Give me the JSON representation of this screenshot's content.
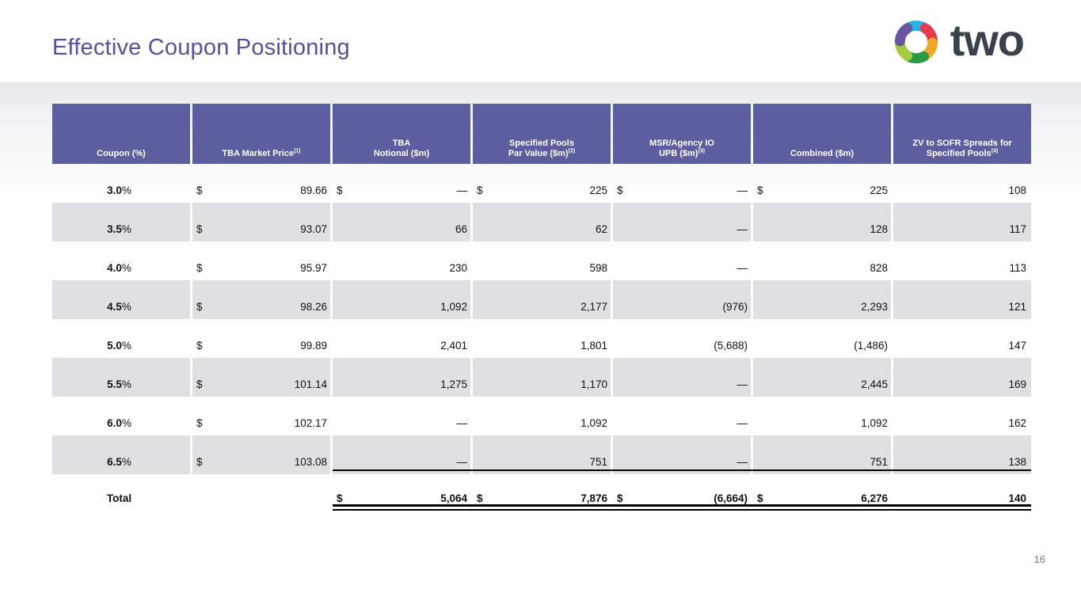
{
  "slide": {
    "title": "Effective Coupon Positioning",
    "page_number": "16"
  },
  "logo": {
    "text": "two",
    "icon_name": "two-hexagon-mark",
    "segment_colors": {
      "top_cyan": "#2ab1e2",
      "upper_right_red": "#e63b4f",
      "lower_right_yellow": "#f0a82a",
      "bottom_green": "#2a9a48",
      "lower_left_lime": "#a5c93f",
      "upper_left_purple": "#6b549f"
    }
  },
  "colors": {
    "title_purple": "#584f9e",
    "header_cell_purple": "#5c5e9f",
    "shaded_row_gray": "#e0e0e3",
    "logo_text_dark": "#39414d"
  },
  "table": {
    "columns": [
      {
        "line1": "",
        "line2": "Coupon (%)",
        "sup": ""
      },
      {
        "line1": "",
        "line2": "TBA Market Price",
        "sup": "(1)"
      },
      {
        "line1": "TBA",
        "line2": "Notional ($m)",
        "sup": ""
      },
      {
        "line1": "Specified Pools",
        "line2": "Par Value ($m)",
        "sup": "(2)"
      },
      {
        "line1": "MSR/Agency IO",
        "line2": "UPB ($m)",
        "sup": "(3)"
      },
      {
        "line1": "",
        "line2": "Combined ($m)",
        "sup": ""
      },
      {
        "line1": "ZV to SOFR Spreads for",
        "line2": "Specified Pools",
        "sup": "(4)"
      }
    ],
    "rows": [
      {
        "coupon": "3.0%",
        "shaded": false,
        "cells": [
          [
            "$",
            "89.66"
          ],
          [
            "$",
            "—"
          ],
          [
            "$",
            "225"
          ],
          [
            "$",
            "—"
          ],
          [
            "$",
            "225"
          ],
          [
            "",
            "108"
          ]
        ]
      },
      {
        "coupon": "3.5%",
        "shaded": true,
        "cells": [
          [
            "$",
            "93.07"
          ],
          [
            "",
            "66"
          ],
          [
            "",
            "62"
          ],
          [
            "",
            "—"
          ],
          [
            "",
            "128"
          ],
          [
            "",
            "117"
          ]
        ]
      },
      {
        "coupon": "4.0%",
        "shaded": false,
        "cells": [
          [
            "$",
            "95.97"
          ],
          [
            "",
            "230"
          ],
          [
            "",
            "598"
          ],
          [
            "",
            "—"
          ],
          [
            "",
            "828"
          ],
          [
            "",
            "113"
          ]
        ]
      },
      {
        "coupon": "4.5%",
        "shaded": true,
        "cells": [
          [
            "$",
            "98.26"
          ],
          [
            "",
            "1,092"
          ],
          [
            "",
            "2,177"
          ],
          [
            "",
            "(976)"
          ],
          [
            "",
            "2,293"
          ],
          [
            "",
            "121"
          ]
        ]
      },
      {
        "coupon": "5.0%",
        "shaded": false,
        "cells": [
          [
            "$",
            "99.89"
          ],
          [
            "",
            "2,401"
          ],
          [
            "",
            "1,801"
          ],
          [
            "",
            "(5,688)"
          ],
          [
            "",
            "(1,486)"
          ],
          [
            "",
            "147"
          ]
        ]
      },
      {
        "coupon": "5.5%",
        "shaded": true,
        "cells": [
          [
            "$",
            "101.14"
          ],
          [
            "",
            "1,275"
          ],
          [
            "",
            "1,170"
          ],
          [
            "",
            "—"
          ],
          [
            "",
            "2,445"
          ],
          [
            "",
            "169"
          ]
        ]
      },
      {
        "coupon": "6.0%",
        "shaded": false,
        "cells": [
          [
            "$",
            "102.17"
          ],
          [
            "",
            "—"
          ],
          [
            "",
            "1,092"
          ],
          [
            "",
            "—"
          ],
          [
            "",
            "1,092"
          ],
          [
            "",
            "162"
          ]
        ]
      },
      {
        "coupon": "6.5%",
        "shaded": true,
        "cells": [
          [
            "$",
            "103.08"
          ],
          [
            "",
            "—"
          ],
          [
            "",
            "751"
          ],
          [
            "",
            "—"
          ],
          [
            "",
            "751"
          ],
          [
            "",
            "138"
          ]
        ]
      }
    ],
    "total_row": {
      "label": "Total",
      "cells": [
        [
          "",
          ""
        ],
        [
          "$",
          "5,064"
        ],
        [
          "$",
          "7,876"
        ],
        [
          "$",
          "(6,664)"
        ],
        [
          "$",
          "6,276"
        ],
        [
          "",
          "140"
        ]
      ]
    }
  }
}
